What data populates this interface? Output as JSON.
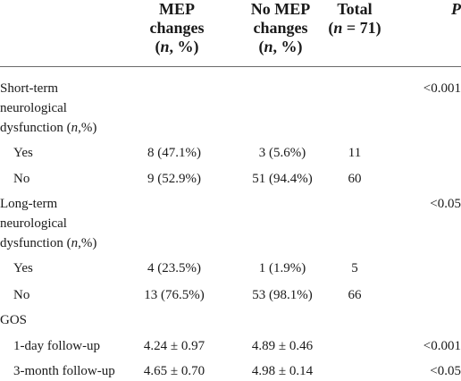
{
  "header": {
    "col1_line1": "MEP",
    "col1_line2": "changes",
    "col1_line3_n": "n",
    "col1_line3_rest": ", %)",
    "col2_line1": "No MEP",
    "col2_line2": "changes",
    "col2_line3_n": "n",
    "col2_line3_rest": ", %)",
    "col3_line1": "Total",
    "col3_line2_n": "n",
    "col3_line2_rest": " = 71)",
    "col4": "P"
  },
  "rows": [
    {
      "label_lines": [
        "Short-term",
        "neurological",
        "dysfunction (n,%)"
      ],
      "p": "<0.001"
    },
    {
      "label": "Yes",
      "mep": "8 (47.1%)",
      "no_mep": "3 (5.6%)",
      "total": "11"
    },
    {
      "label": "No",
      "mep": "9 (52.9%)",
      "no_mep": "51 (94.4%)",
      "total": "60"
    },
    {
      "label_lines": [
        "Long-term",
        "neurological",
        "dysfunction (n,%)"
      ],
      "p": "<0.05"
    },
    {
      "label": "Yes",
      "mep": "4 (23.5%)",
      "no_mep": "1 (1.9%)",
      "total": "5"
    },
    {
      "label": "No",
      "mep": "13 (76.5%)",
      "no_mep": "53 (98.1%)",
      "total": "66"
    },
    {
      "label": "GOS"
    },
    {
      "label": "1-day follow-up",
      "mep": "4.24 ± 0.97",
      "no_mep": "4.89 ± 0.46",
      "p": "<0.001"
    },
    {
      "label": "3-month follow-up",
      "mep": "4.65 ± 0.70",
      "no_mep": "4.98 ± 0.14",
      "p": "<0.05"
    }
  ]
}
